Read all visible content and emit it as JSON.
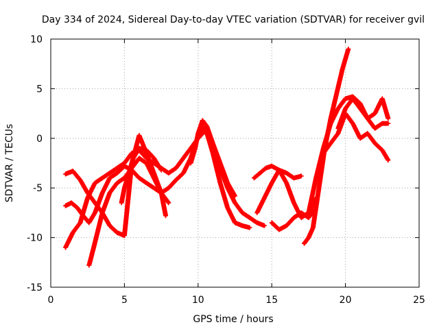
{
  "chart_data": {
    "type": "scatter",
    "title": "Day 334 of 2024, Sidereal Day-to-day VTEC variation (SDTVAR) for receiver gvil",
    "xlabel": "GPS time / hours",
    "ylabel": "SDTVAR / TECUs",
    "xlim": [
      0,
      25
    ],
    "ylim": [
      -15,
      10
    ],
    "xticks": [
      0,
      5,
      10,
      15,
      20,
      25
    ],
    "yticks": [
      -15,
      -10,
      -5,
      0,
      5,
      10
    ],
    "xtick_labels": [
      "0",
      "5",
      "10",
      "15",
      "20",
      "25"
    ],
    "ytick_labels": [
      "-15",
      "-10",
      "-5",
      "0",
      "5",
      "10"
    ],
    "grid": true,
    "marker": "+",
    "color": "#ff0000",
    "series": [
      {
        "name": "trace-1",
        "x": [
          1.0,
          1.4,
          1.8,
          2.2,
          2.6,
          3.0,
          3.5,
          4.0,
          4.5,
          5.0,
          5.5,
          6.0,
          6.5,
          7.0,
          7.5,
          8.0,
          8.5,
          9.0,
          9.5,
          10.0,
          10.3,
          10.6,
          11.0,
          11.5,
          12.0,
          12.5,
          13.0,
          13.5
        ],
        "y": [
          -6.8,
          -6.5,
          -7.0,
          -7.8,
          -8.5,
          -7.5,
          -5.5,
          -4.0,
          -3.5,
          -2.8,
          -3.2,
          -4.0,
          -4.5,
          -5.0,
          -5.5,
          -5.0,
          -4.2,
          -3.5,
          -2.0,
          0.2,
          1.2,
          0.5,
          -1.5,
          -4.5,
          -7.0,
          -8.5,
          -8.8,
          -9.0
        ]
      },
      {
        "name": "trace-2",
        "x": [
          1.0,
          1.5,
          2.0,
          2.5,
          3.0,
          3.5,
          4.0,
          4.5,
          5.0,
          5.5,
          6.0,
          6.5,
          7.0,
          7.5,
          8.0,
          8.5,
          9.0,
          9.5,
          10.0,
          10.5,
          11.0,
          11.5,
          12.0,
          12.5,
          13.0,
          13.5,
          14.0,
          14.5
        ],
        "y": [
          -11.0,
          -9.5,
          -8.5,
          -6.0,
          -4.5,
          -4.0,
          -3.5,
          -3.0,
          -2.5,
          -1.5,
          -1.2,
          -2.0,
          -2.5,
          -3.0,
          -3.5,
          -3.0,
          -2.0,
          -1.0,
          0.0,
          0.8,
          -1.0,
          -3.0,
          -5.0,
          -6.5,
          -7.5,
          -8.0,
          -8.5,
          -8.8
        ]
      },
      {
        "name": "trace-3",
        "x": [
          1.0,
          1.5,
          2.0,
          2.5,
          3.0,
          3.5,
          4.0,
          4.5,
          5.0,
          5.5,
          6.0,
          6.5,
          7.0,
          7.5,
          7.8
        ],
        "y": [
          -3.6,
          -3.3,
          -4.2,
          -5.5,
          -6.5,
          -7.5,
          -8.8,
          -9.5,
          -9.8,
          -2.5,
          0.3,
          -1.5,
          -3.5,
          -5.5,
          -7.8
        ]
      },
      {
        "name": "trace-4",
        "x": [
          2.6,
          3.0,
          3.5,
          4.0,
          4.5,
          5.0,
          5.5,
          6.0,
          6.5,
          7.0,
          7.5,
          8.0
        ],
        "y": [
          -12.8,
          -10.5,
          -7.5,
          -5.5,
          -4.5,
          -4.0,
          -3.0,
          -2.0,
          -2.5,
          -4.0,
          -5.5,
          -6.5
        ]
      },
      {
        "name": "trace-5",
        "x": [
          4.8,
          5.0,
          5.3,
          5.6,
          6.0,
          6.5,
          7.0,
          7.5
        ],
        "y": [
          -6.5,
          -5.0,
          -3.5,
          -2.0,
          -1.0,
          -1.2,
          -2.0,
          -3.2
        ]
      },
      {
        "name": "trace-6",
        "x": [
          9.5,
          9.8,
          10.0,
          10.3,
          10.6,
          11.0,
          11.5,
          12.0,
          12.5
        ],
        "y": [
          -2.5,
          -1.0,
          0.5,
          1.8,
          1.2,
          -0.5,
          -2.5,
          -4.5,
          -5.8
        ]
      },
      {
        "name": "trace-7",
        "x": [
          13.8,
          14.2,
          14.6,
          15.0,
          15.5,
          16.0,
          16.5,
          17.0
        ],
        "y": [
          -4.0,
          -3.5,
          -3.0,
          -2.8,
          -3.2,
          -3.5,
          -4.0,
          -3.8
        ]
      },
      {
        "name": "trace-8",
        "x": [
          14.0,
          14.5,
          15.0,
          15.5,
          16.0,
          16.5,
          17.0,
          17.5,
          18.0
        ],
        "y": [
          -7.5,
          -6.0,
          -4.5,
          -3.2,
          -4.5,
          -6.5,
          -8.0,
          -7.5,
          -6.0
        ]
      },
      {
        "name": "trace-9",
        "x": [
          15.0,
          15.5,
          16.0,
          16.5,
          17.0,
          17.5,
          18.0
        ],
        "y": [
          -8.5,
          -9.2,
          -8.8,
          -8.0,
          -7.5,
          -8.0,
          -7.0
        ]
      },
      {
        "name": "trace-10",
        "x": [
          17.2,
          17.5,
          17.8,
          18.0,
          18.3,
          18.6,
          19.0,
          19.4,
          19.8,
          20.2
        ],
        "y": [
          -10.6,
          -10.0,
          -9.0,
          -7.0,
          -4.0,
          -1.0,
          2.0,
          4.5,
          7.0,
          9.0
        ]
      },
      {
        "name": "trace-11",
        "x": [
          17.5,
          18.0,
          18.5,
          19.0,
          19.5,
          20.0,
          20.5,
          21.0,
          21.5,
          22.0,
          22.5,
          22.9
        ],
        "y": [
          -7.5,
          -4.0,
          -1.0,
          1.5,
          3.0,
          4.0,
          4.2,
          3.5,
          2.0,
          1.0,
          1.5,
          1.5
        ]
      },
      {
        "name": "trace-12",
        "x": [
          18.5,
          19.0,
          19.5,
          20.0,
          20.5,
          21.0,
          21.5,
          22.0,
          22.5,
          22.9
        ],
        "y": [
          -1.5,
          -0.5,
          0.5,
          2.5,
          1.5,
          0.0,
          0.5,
          -0.5,
          -1.2,
          -2.2
        ]
      },
      {
        "name": "trace-13",
        "x": [
          19.5,
          20.0,
          20.5,
          21.0,
          21.5,
          22.0,
          22.5,
          22.9
        ],
        "y": [
          1.0,
          3.0,
          4.0,
          3.0,
          2.0,
          2.5,
          4.0,
          2.0
        ]
      }
    ]
  }
}
